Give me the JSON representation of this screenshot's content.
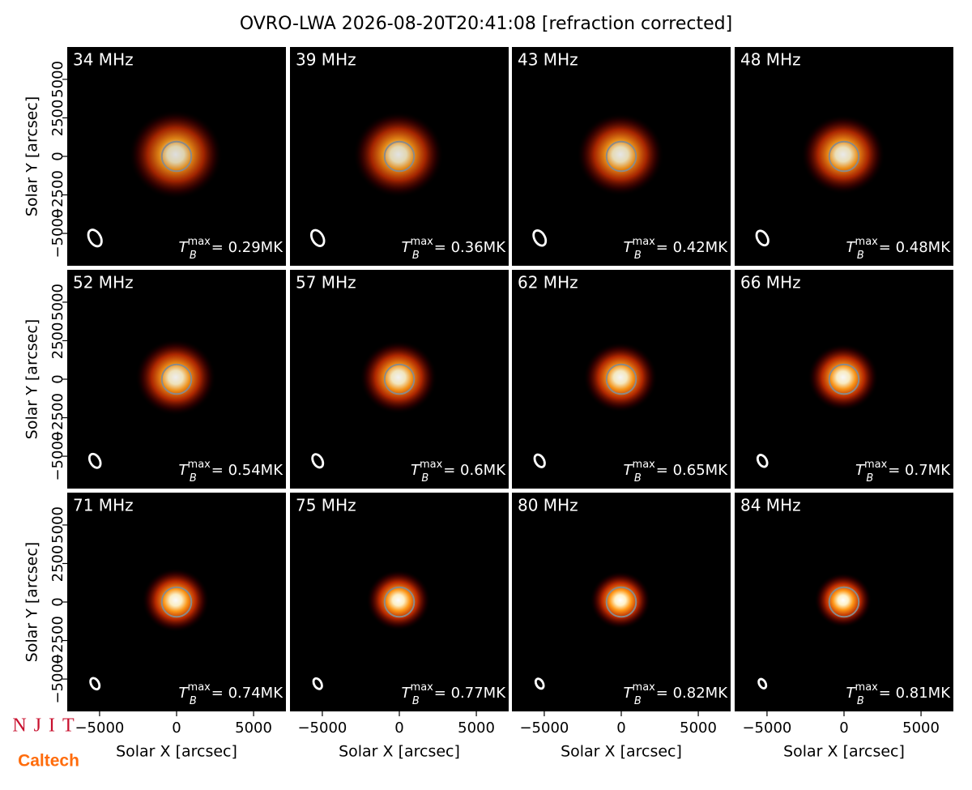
{
  "chart_data": {
    "type": "image-grid",
    "title": "OVRO-LWA 2026-08-20T20:41:08 [refraction corrected]",
    "xlabel": "Solar X [arcsec]",
    "ylabel": "Solar Y [arcsec]",
    "xlim": [
      -7100,
      7100
    ],
    "ylim": [
      -7100,
      7100
    ],
    "xticks": [
      {
        "value": -5000,
        "label": "−5000"
      },
      0,
      5000
    ],
    "yticks": [
      {
        "value": -5000,
        "label": "−5000"
      },
      {
        "value": -2500,
        "label": "−2500"
      },
      0,
      2500,
      5000
    ],
    "tmax_symbol": "T",
    "tmax_sub": "B",
    "tmax_sup": "max",
    "panels": [
      {
        "label": "34 MHz",
        "tmax": 0.29,
        "tmax_label": "= 0.29MK"
      },
      {
        "label": "39 MHz",
        "tmax": 0.36,
        "tmax_label": "= 0.36MK"
      },
      {
        "label": "43 MHz",
        "tmax": 0.42,
        "tmax_label": "= 0.42MK"
      },
      {
        "label": "48 MHz",
        "tmax": 0.48,
        "tmax_label": "= 0.48MK"
      },
      {
        "label": "52 MHz",
        "tmax": 0.54,
        "tmax_label": "= 0.54MK"
      },
      {
        "label": "57 MHz",
        "tmax": 0.6,
        "tmax_label": "= 0.6MK"
      },
      {
        "label": "62 MHz",
        "tmax": 0.65,
        "tmax_label": "= 0.65MK"
      },
      {
        "label": "66 MHz",
        "tmax": 0.7,
        "tmax_label": "= 0.7MK"
      },
      {
        "label": "71 MHz",
        "tmax": 0.74,
        "tmax_label": "= 0.74MK"
      },
      {
        "label": "75 MHz",
        "tmax": 0.77,
        "tmax_label": "= 0.77MK"
      },
      {
        "label": "80 MHz",
        "tmax": 0.82,
        "tmax_label": "= 0.82MK"
      },
      {
        "label": "84 MHz",
        "tmax": 0.81,
        "tmax_label": "= 0.81MK"
      }
    ]
  },
  "logos": {
    "njit": "NJIT",
    "caltech": "Caltech"
  }
}
